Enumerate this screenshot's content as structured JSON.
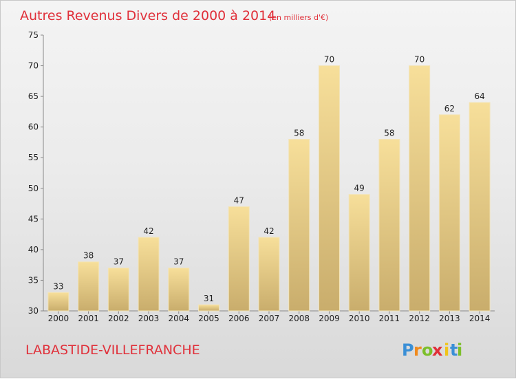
{
  "chart_data": {
    "type": "bar",
    "title": "Autres Revenus Divers de 2000 à 2014",
    "subtitle": "(en milliers d'€)",
    "categories": [
      "2000",
      "2001",
      "2002",
      "2003",
      "2004",
      "2005",
      "2006",
      "2007",
      "2008",
      "2009",
      "2010",
      "2011",
      "2012",
      "2013",
      "2014"
    ],
    "values": [
      33,
      38,
      37,
      42,
      37,
      31,
      47,
      42,
      58,
      70,
      49,
      58,
      70,
      62,
      64
    ],
    "ylim": [
      30,
      75
    ],
    "yticks": [
      30,
      35,
      40,
      45,
      50,
      55,
      60,
      65,
      70,
      75
    ],
    "grid": false,
    "bar_color": "#e8cc84"
  },
  "place_name": "LABASTIDE-VILLEFRANCHE",
  "brand": {
    "letters": [
      "P",
      "r",
      "o",
      "x",
      "i",
      "t",
      "i"
    ],
    "colors": [
      "#3a8fd6",
      "#f08a1c",
      "#7cbf2a",
      "#e0303a",
      "#f0c419",
      "#3a8fd6",
      "#7cbf2a"
    ]
  }
}
